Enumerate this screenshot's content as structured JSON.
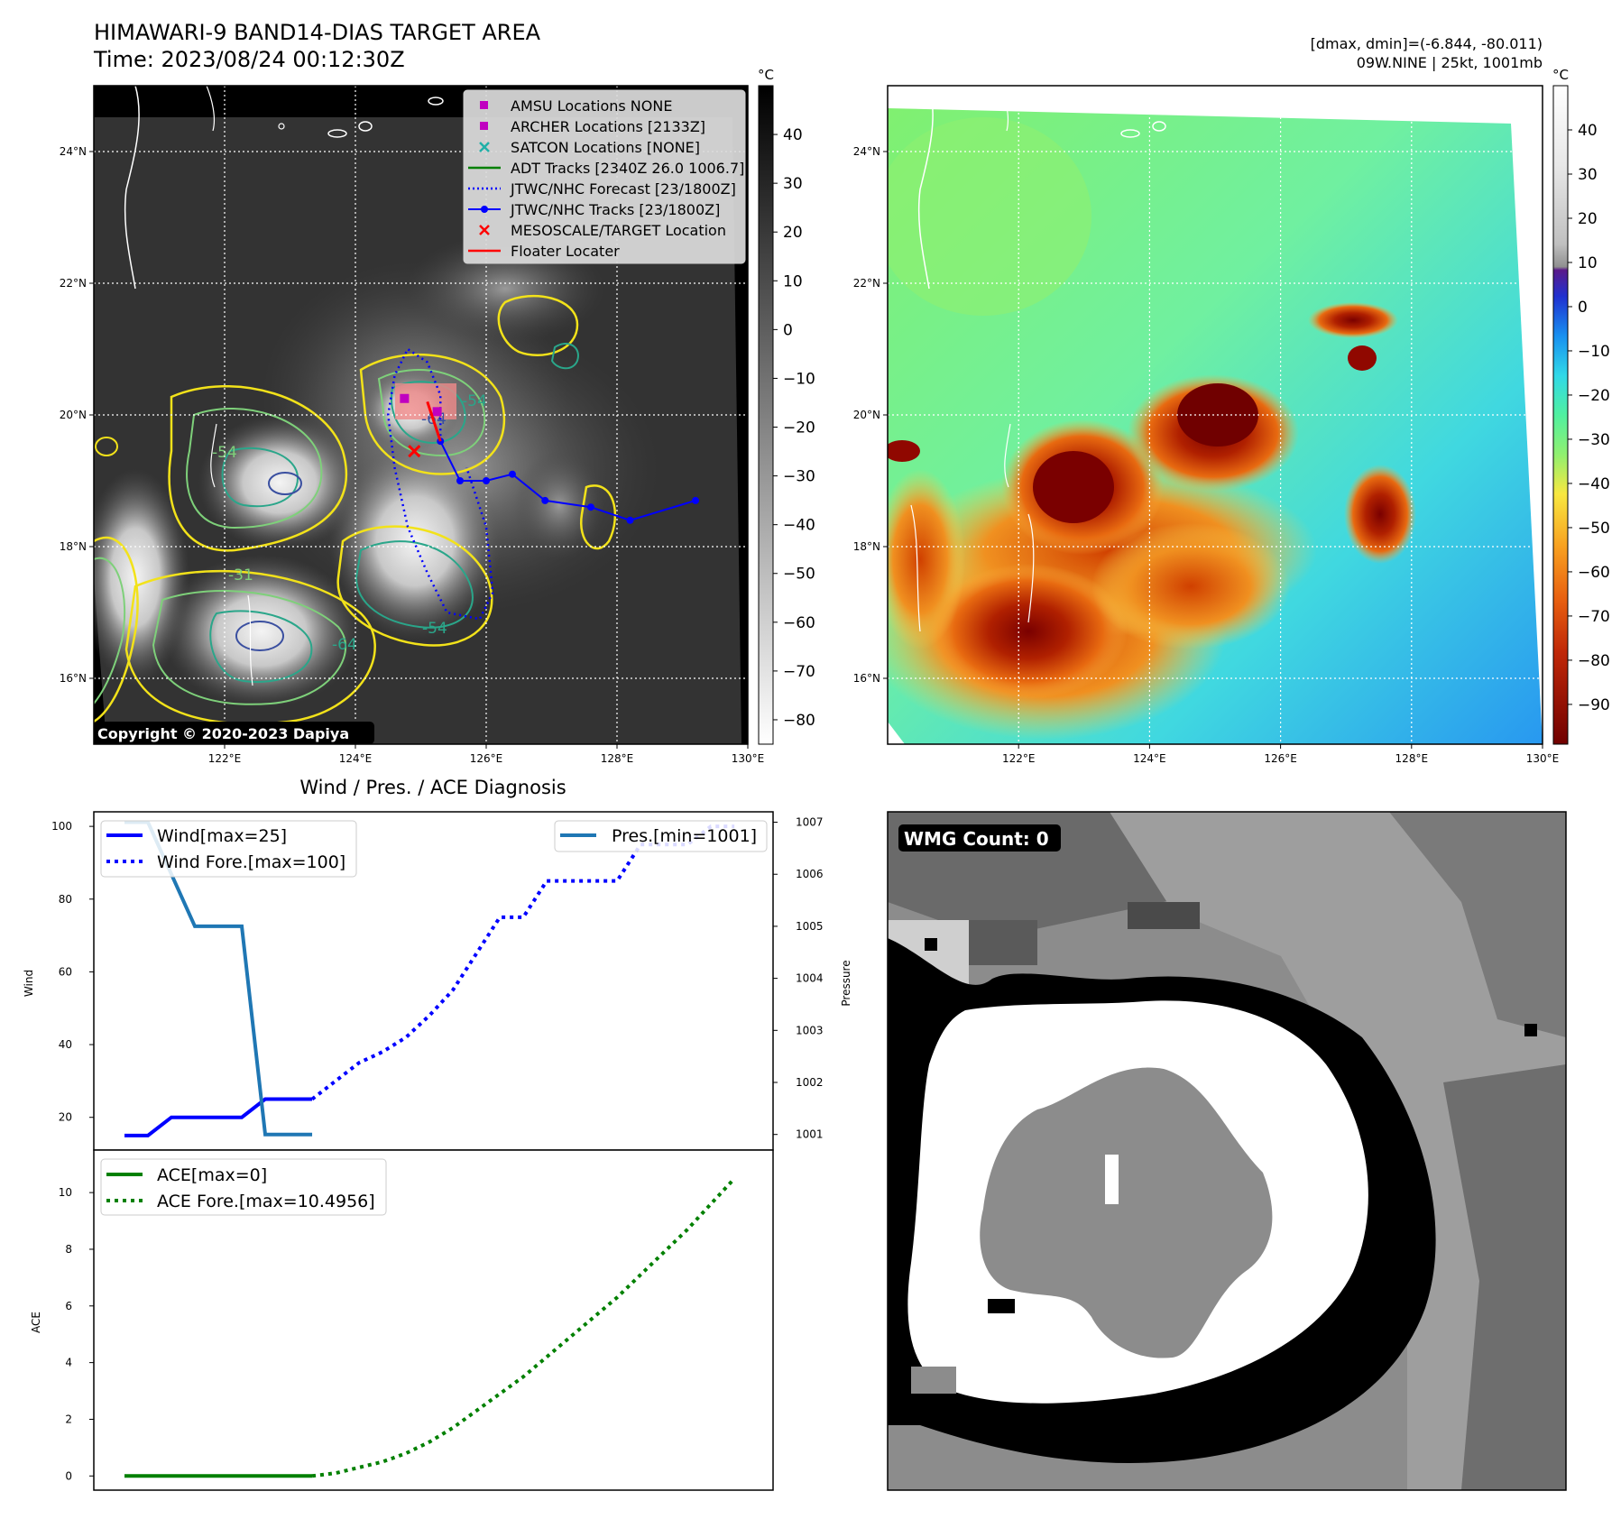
{
  "header": {
    "title": "HIMAWARI-9 BAND14-DIAS TARGET AREA",
    "time": "Time: 2023/08/24 00:12:30Z",
    "dminmax": "[dmax, dmin]=(-6.844, -80.011)",
    "storm": "09W.NINE | 25kt, 1001mb"
  },
  "map_axes": {
    "lat_ticks": [
      "24°N",
      "22°N",
      "20°N",
      "18°N",
      "16°N"
    ],
    "lon_ticks": [
      "122°E",
      "124°E",
      "126°E",
      "128°E",
      "130°E"
    ],
    "lat_range": [
      15.0,
      25.0
    ],
    "lon_range": [
      120.0,
      130.0
    ]
  },
  "ir_map": {
    "copyright": "Copyright © 2020-2023 Dapiya",
    "legend": [
      {
        "label": "AMSU Locations NONE",
        "color": "#c000c0",
        "marker": "square"
      },
      {
        "label": "ARCHER Locations [2133Z]",
        "color": "#c000c0",
        "marker": "square"
      },
      {
        "label": "SATCON Locations [NONE]",
        "color": "#20b0a8",
        "marker": "x"
      },
      {
        "label": "ADT Tracks [2340Z 26.0 1006.7]",
        "color": "#008000",
        "marker": "line"
      },
      {
        "label": "JTWC/NHC Forecast [23/1800Z]",
        "color": "#0000ff",
        "marker": "dotted"
      },
      {
        "label": "JTWC/NHC Tracks [23/1800Z]",
        "color": "#0000ff",
        "marker": "line-dot"
      },
      {
        "label": "MESOSCALE/TARGET Location",
        "color": "#ff0000",
        "marker": "x"
      },
      {
        "label": "Floater Locater",
        "color": "#ff0000",
        "marker": "line"
      }
    ],
    "contour_labels": [
      "-54",
      "-64",
      "-54",
      "-64",
      "-31",
      "-54"
    ],
    "colorbar": {
      "unit": "°C",
      "ticks": [
        "40",
        "30",
        "20",
        "10",
        "0",
        "−10",
        "−20",
        "−30",
        "−40",
        "−50",
        "−60",
        "−70",
        "−80"
      ],
      "range": [
        -85,
        50
      ]
    },
    "jtwc_track": [
      [
        129.2,
        18.7
      ],
      [
        128.2,
        18.4
      ],
      [
        127.6,
        18.6
      ],
      [
        126.9,
        18.7
      ],
      [
        126.4,
        19.1
      ],
      [
        126.0,
        19.0
      ],
      [
        125.6,
        19.0
      ],
      [
        125.3,
        19.6
      ]
    ],
    "forecast_track": [
      [
        125.3,
        19.6
      ],
      [
        125.3,
        20.3
      ],
      [
        125.1,
        20.8
      ],
      [
        124.8,
        21.0
      ],
      [
        124.6,
        20.6
      ],
      [
        124.5,
        20.0
      ],
      [
        124.6,
        19.2
      ],
      [
        124.8,
        18.3
      ],
      [
        125.1,
        17.6
      ],
      [
        125.4,
        17.0
      ],
      [
        125.9,
        16.9
      ],
      [
        126.1,
        17.3
      ],
      [
        126.0,
        18.3
      ],
      [
        125.7,
        19.2
      ]
    ],
    "archer_points": [
      [
        124.75,
        20.25
      ],
      [
        125.25,
        20.05
      ]
    ],
    "target_location": [
      124.9,
      19.45
    ],
    "floater_line": [
      [
        125.1,
        20.2
      ],
      [
        125.3,
        19.6
      ]
    ]
  },
  "color_map": {
    "colorbar": {
      "unit": "°C",
      "ticks": [
        "40",
        "30",
        "20",
        "10",
        "0",
        "−10",
        "−20",
        "−30",
        "−40",
        "−50",
        "−60",
        "−70",
        "−80",
        "−90"
      ],
      "range": [
        -99,
        50
      ]
    }
  },
  "chart_data": [
    {
      "type": "line",
      "title": "Wind / Pres. / ACE Diagnosis",
      "ylabel": "Wind",
      "y2label": "Pressure",
      "ylim": [
        11,
        104
      ],
      "y2lim": [
        1000.7,
        1007.2
      ],
      "xlim": [
        0,
        27
      ],
      "yticks": [
        "100",
        "80",
        "60",
        "40",
        "20"
      ],
      "y2ticks": [
        "1007",
        "1006",
        "1005",
        "1004",
        "1003",
        "1002",
        "1001"
      ],
      "series": [
        {
          "name": "Wind[max=25]",
          "axis": "left",
          "style": "solid",
          "color": "#0000ff",
          "x": [
            0,
            1,
            2,
            3,
            4,
            5,
            6,
            7,
            8
          ],
          "values": [
            15,
            15,
            20,
            20,
            20,
            20,
            25,
            25,
            25
          ]
        },
        {
          "name": "Wind Fore.[max=100]",
          "axis": "left",
          "style": "dotted",
          "color": "#0000ff",
          "x": [
            8,
            9,
            10,
            11,
            12,
            13,
            14,
            15,
            16,
            17,
            18,
            19,
            20,
            21,
            22,
            23,
            24,
            25,
            26
          ],
          "values": [
            25,
            30,
            35,
            38,
            42,
            48,
            55,
            65,
            75,
            75,
            85,
            85,
            85,
            85,
            95,
            95,
            95,
            100,
            100
          ]
        },
        {
          "name": "Pres.[min=1001]",
          "axis": "right",
          "style": "solid",
          "color": "#1f77b4",
          "x": [
            0,
            1,
            2,
            3,
            4,
            5,
            6,
            7,
            8
          ],
          "values": [
            1007,
            1007,
            1006,
            1005,
            1005,
            1005,
            1001,
            1001,
            1001
          ]
        }
      ]
    },
    {
      "type": "line",
      "ylabel": "ACE",
      "ylim": [
        -0.5,
        11.5
      ],
      "xlim": [
        0,
        27
      ],
      "yticks": [
        "10",
        "8",
        "6",
        "4",
        "2",
        "0"
      ],
      "series": [
        {
          "name": "ACE[max=0]",
          "style": "solid",
          "color": "#008000",
          "x": [
            0,
            1,
            2,
            3,
            4,
            5,
            6,
            7,
            8
          ],
          "values": [
            0,
            0,
            0,
            0,
            0,
            0,
            0,
            0,
            0
          ]
        },
        {
          "name": "ACE Fore.[max=10.4956]",
          "style": "dotted",
          "color": "#008000",
          "x": [
            8,
            9,
            10,
            11,
            12,
            13,
            14,
            15,
            16,
            17,
            18,
            19,
            20,
            21,
            22,
            23,
            24,
            25,
            26
          ],
          "values": [
            0.0,
            0.1,
            0.3,
            0.5,
            0.8,
            1.2,
            1.7,
            2.3,
            2.9,
            3.5,
            4.2,
            4.9,
            5.6,
            6.3,
            7.1,
            7.9,
            8.7,
            9.6,
            10.4956
          ]
        }
      ]
    }
  ],
  "wmg": {
    "label": "WMG Count: 0"
  }
}
